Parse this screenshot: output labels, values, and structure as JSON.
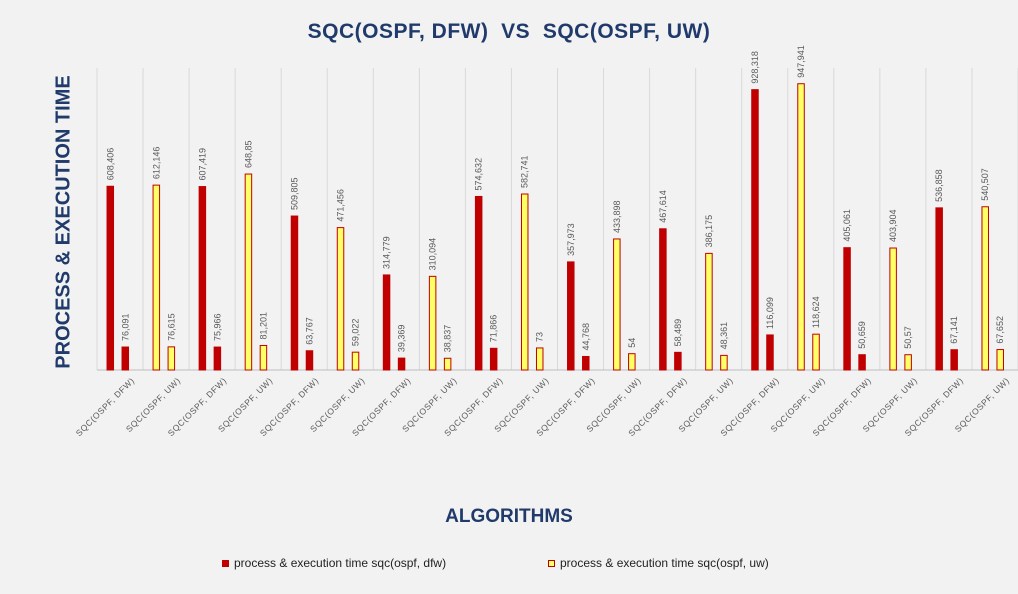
{
  "chart_data": {
    "type": "bar",
    "title": "SQC(OSPF, DFW)  VS  SQC(OSPF, UW)",
    "xlabel": "ALGORITHMS",
    "ylabel": "PROCESS & EXECUTION TIME",
    "ylim": [
      0,
      1000
    ],
    "grid": "vertical-category-lines",
    "legend_position": "bottom",
    "categories": [
      "SQC(OSPF, DFW)",
      "SQC(OSPF, UW)",
      "SQC(OSPF, DFW)",
      "SQC(OSPF, UW)",
      "SQC(OSPF, DFW)",
      "SQC(OSPF, UW)",
      "SQC(OSPF, DFW)",
      "SQC(OSPF, UW)",
      "SQC(OSPF, DFW)",
      "SQC(OSPF, UW)",
      "SQC(OSPF, DFW)",
      "SQC(OSPF, UW)",
      "SQC(OSPF, DFW)",
      "SQC(OSPF, UW)",
      "SQC(OSPF, DFW)",
      "SQC(OSPF, UW)",
      "SQC(OSPF, DFW)",
      "SQC(OSPF, UW)",
      "SQC(OSPF, DFW)",
      "SQC(OSPF, UW)"
    ],
    "series_styles": {
      "dfw": {
        "fill": "#c00000",
        "stroke": "#c00000"
      },
      "uw": {
        "fill": "#ffff66",
        "stroke": "#c00000"
      }
    },
    "bars": [
      {
        "style": "dfw",
        "values": [
          608.406,
          76.091
        ],
        "labels": [
          "608,406",
          "76,091"
        ]
      },
      {
        "style": "uw",
        "values": [
          612.146,
          76.615
        ],
        "labels": [
          "612,146",
          "76,615"
        ]
      },
      {
        "style": "dfw",
        "values": [
          607.419,
          75.966
        ],
        "labels": [
          "607,419",
          "75,966"
        ]
      },
      {
        "style": "uw",
        "values": [
          648.85,
          81.201
        ],
        "labels": [
          "648,85",
          "81,201"
        ]
      },
      {
        "style": "dfw",
        "values": [
          509.805,
          63.767
        ],
        "labels": [
          "509,805",
          "63,767"
        ]
      },
      {
        "style": "uw",
        "values": [
          471.456,
          59.022
        ],
        "labels": [
          "471,456",
          "59,022"
        ]
      },
      {
        "style": "dfw",
        "values": [
          314.779,
          39.369
        ],
        "labels": [
          "314,779",
          "39,369"
        ]
      },
      {
        "style": "uw",
        "values": [
          310.094,
          38.837
        ],
        "labels": [
          "310,094",
          "38,837"
        ]
      },
      {
        "style": "dfw",
        "values": [
          574.632,
          71.866
        ],
        "labels": [
          "574,632",
          "71,866"
        ]
      },
      {
        "style": "uw",
        "values": [
          582.741,
          73
        ],
        "labels": [
          "582,741",
          "73"
        ]
      },
      {
        "style": "dfw",
        "values": [
          357.973,
          44.768
        ],
        "labels": [
          "357,973",
          "44,768"
        ]
      },
      {
        "style": "uw",
        "values": [
          433.898,
          54
        ],
        "labels": [
          "433,898",
          "54"
        ]
      },
      {
        "style": "dfw",
        "values": [
          467.614,
          58.489
        ],
        "labels": [
          "467,614",
          "58,489"
        ]
      },
      {
        "style": "uw",
        "values": [
          386.175,
          48.361
        ],
        "labels": [
          "386,175",
          "48,361"
        ]
      },
      {
        "style": "dfw",
        "values": [
          928.318,
          116.099
        ],
        "labels": [
          "928,318",
          "116,099"
        ]
      },
      {
        "style": "uw",
        "values": [
          947.941,
          118.624
        ],
        "labels": [
          "947,941",
          "118,624"
        ]
      },
      {
        "style": "dfw",
        "values": [
          405.061,
          50.659
        ],
        "labels": [
          "405,061",
          "50,659"
        ]
      },
      {
        "style": "uw",
        "values": [
          403.904,
          50.57
        ],
        "labels": [
          "403,904",
          "50,57"
        ]
      },
      {
        "style": "dfw",
        "values": [
          536.858,
          67.141
        ],
        "labels": [
          "536,858",
          "67,141"
        ]
      },
      {
        "style": "uw",
        "values": [
          540.507,
          67.652
        ],
        "labels": [
          "540,507",
          "67,652"
        ]
      }
    ],
    "legend": [
      {
        "label": "process & execution time sqc(ospf, dfw)",
        "style": "dfw"
      },
      {
        "label": "process & execution time sqc(ospf, uw)",
        "style": "uw"
      }
    ]
  }
}
